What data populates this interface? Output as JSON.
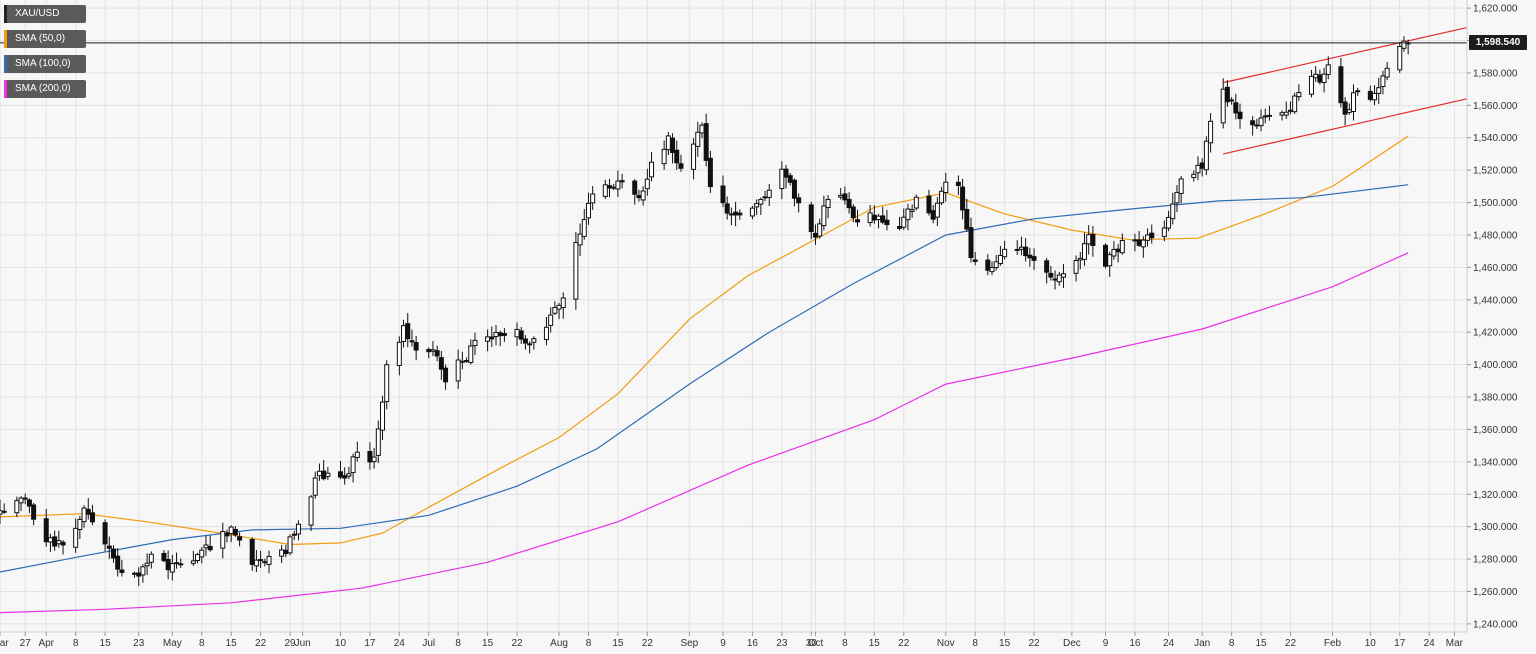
{
  "chart_data": {
    "type": "candlestick",
    "symbol": "XAU/USD",
    "last_price": "1,598.540",
    "y_axis": {
      "ylim": [
        1235,
        1625
      ],
      "ticks": [
        "1,240.000",
        "1,260.000",
        "1,280.000",
        "1,300.000",
        "1,320.000",
        "1,340.000",
        "1,360.000",
        "1,380.000",
        "1,400.000",
        "1,420.000",
        "1,440.000",
        "1,460.000",
        "1,480.000",
        "1,500.000",
        "1,520.000",
        "1,540.000",
        "1,560.000",
        "1,580.000",
        "1,600.000",
        "1,620.000"
      ]
    },
    "x_axis": {
      "start_date": "2019-03-21",
      "end_date": "2020-03-04",
      "ticks": [
        {
          "date": "2019-03-21",
          "label": "Mar"
        },
        {
          "date": "2019-03-27",
          "label": "27"
        },
        {
          "date": "2019-04-01",
          "label": "Apr"
        },
        {
          "date": "2019-04-08",
          "label": "8"
        },
        {
          "date": "2019-04-15",
          "label": "15"
        },
        {
          "date": "2019-04-23",
          "label": "23"
        },
        {
          "date": "2019-05-01",
          "label": "May"
        },
        {
          "date": "2019-05-08",
          "label": "8"
        },
        {
          "date": "2019-05-15",
          "label": "15"
        },
        {
          "date": "2019-05-22",
          "label": "22"
        },
        {
          "date": "2019-05-29",
          "label": "29"
        },
        {
          "date": "2019-06-01",
          "label": "Jun"
        },
        {
          "date": "2019-06-10",
          "label": "10"
        },
        {
          "date": "2019-06-17",
          "label": "17"
        },
        {
          "date": "2019-06-24",
          "label": "24"
        },
        {
          "date": "2019-07-01",
          "label": "Jul"
        },
        {
          "date": "2019-07-08",
          "label": "8"
        },
        {
          "date": "2019-07-15",
          "label": "15"
        },
        {
          "date": "2019-07-22",
          "label": "22"
        },
        {
          "date": "2019-08-01",
          "label": "Aug"
        },
        {
          "date": "2019-08-08",
          "label": "8"
        },
        {
          "date": "2019-08-15",
          "label": "15"
        },
        {
          "date": "2019-08-22",
          "label": "22"
        },
        {
          "date": "2019-09-01",
          "label": "Sep"
        },
        {
          "date": "2019-09-09",
          "label": "9"
        },
        {
          "date": "2019-09-16",
          "label": "16"
        },
        {
          "date": "2019-09-23",
          "label": "23"
        },
        {
          "date": "2019-09-30",
          "label": "30"
        },
        {
          "date": "2019-10-01",
          "label": "Oct"
        },
        {
          "date": "2019-10-08",
          "label": "8"
        },
        {
          "date": "2019-10-15",
          "label": "15"
        },
        {
          "date": "2019-10-22",
          "label": "22"
        },
        {
          "date": "2019-11-01",
          "label": "Nov"
        },
        {
          "date": "2019-11-08",
          "label": "8"
        },
        {
          "date": "2019-11-15",
          "label": "15"
        },
        {
          "date": "2019-11-22",
          "label": "22"
        },
        {
          "date": "2019-12-01",
          "label": "Dec"
        },
        {
          "date": "2019-12-09",
          "label": "9"
        },
        {
          "date": "2019-12-16",
          "label": "16"
        },
        {
          "date": "2019-12-24",
          "label": "24"
        },
        {
          "date": "2020-01-01",
          "label": "Jan"
        },
        {
          "date": "2020-01-08",
          "label": "8"
        },
        {
          "date": "2020-01-15",
          "label": "15"
        },
        {
          "date": "2020-01-22",
          "label": "22"
        },
        {
          "date": "2020-02-01",
          "label": "Feb"
        },
        {
          "date": "2020-02-10",
          "label": "10"
        },
        {
          "date": "2020-02-17",
          "label": "17"
        },
        {
          "date": "2020-02-24",
          "label": "24"
        },
        {
          "date": "2020-03-01",
          "label": "Mar"
        }
      ]
    },
    "price_path": [
      [
        "2019-03-21",
        1308
      ],
      [
        "2019-03-27",
        1318
      ],
      [
        "2019-04-01",
        1292
      ],
      [
        "2019-04-05",
        1290
      ],
      [
        "2019-04-10",
        1308
      ],
      [
        "2019-04-15",
        1290
      ],
      [
        "2019-04-18",
        1275
      ],
      [
        "2019-04-23",
        1272
      ],
      [
        "2019-04-26",
        1284
      ],
      [
        "2019-05-01",
        1275
      ],
      [
        "2019-05-06",
        1280
      ],
      [
        "2019-05-13",
        1295
      ],
      [
        "2019-05-15",
        1300
      ],
      [
        "2019-05-20",
        1276
      ],
      [
        "2019-05-24",
        1282
      ],
      [
        "2019-05-28",
        1283
      ],
      [
        "2019-05-31",
        1305
      ],
      [
        "2019-06-05",
        1332
      ],
      [
        "2019-06-10",
        1328
      ],
      [
        "2019-06-14",
        1344
      ],
      [
        "2019-06-18",
        1342
      ],
      [
        "2019-06-21",
        1398
      ],
      [
        "2019-06-25",
        1422
      ],
      [
        "2019-06-28",
        1410
      ],
      [
        "2019-07-02",
        1410
      ],
      [
        "2019-07-05",
        1392
      ],
      [
        "2019-07-09",
        1402
      ],
      [
        "2019-07-12",
        1412
      ],
      [
        "2019-07-17",
        1418
      ],
      [
        "2019-07-22",
        1420
      ],
      [
        "2019-07-25",
        1412
      ],
      [
        "2019-07-30",
        1428
      ],
      [
        "2019-08-02",
        1442
      ],
      [
        "2019-08-05",
        1475
      ],
      [
        "2019-08-08",
        1500
      ],
      [
        "2019-08-12",
        1512
      ],
      [
        "2019-08-16",
        1512
      ],
      [
        "2019-08-20",
        1502
      ],
      [
        "2019-08-23",
        1525
      ],
      [
        "2019-08-27",
        1540
      ],
      [
        "2019-08-30",
        1522
      ],
      [
        "2019-09-04",
        1548
      ],
      [
        "2019-09-06",
        1508
      ],
      [
        "2019-09-10",
        1495
      ],
      [
        "2019-09-13",
        1490
      ],
      [
        "2019-09-18",
        1500
      ],
      [
        "2019-09-23",
        1522
      ],
      [
        "2019-09-26",
        1504
      ],
      [
        "2019-10-01",
        1478
      ],
      [
        "2019-10-04",
        1504
      ],
      [
        "2019-10-08",
        1505
      ],
      [
        "2019-10-11",
        1488
      ],
      [
        "2019-10-16",
        1492
      ],
      [
        "2019-10-21",
        1485
      ],
      [
        "2019-10-25",
        1502
      ],
      [
        "2019-10-29",
        1492
      ],
      [
        "2019-11-01",
        1512
      ],
      [
        "2019-11-04",
        1508
      ],
      [
        "2019-11-07",
        1468
      ],
      [
        "2019-11-11",
        1456
      ],
      [
        "2019-11-15",
        1468
      ],
      [
        "2019-11-19",
        1472
      ],
      [
        "2019-11-22",
        1462
      ],
      [
        "2019-11-27",
        1455
      ],
      [
        "2019-12-02",
        1463
      ],
      [
        "2019-12-05",
        1478
      ],
      [
        "2019-12-09",
        1462
      ],
      [
        "2019-12-13",
        1475
      ],
      [
        "2019-12-18",
        1477
      ],
      [
        "2019-12-23",
        1484
      ],
      [
        "2019-12-27",
        1512
      ],
      [
        "2020-01-01",
        1522
      ],
      [
        "2020-01-03",
        1552
      ],
      [
        "2020-01-06",
        1568
      ],
      [
        "2020-01-08",
        1560
      ],
      [
        "2020-01-10",
        1552
      ],
      [
        "2020-01-14",
        1545
      ],
      [
        "2020-01-17",
        1557
      ],
      [
        "2020-01-22",
        1558
      ],
      [
        "2020-01-27",
        1580
      ],
      [
        "2020-01-29",
        1575
      ],
      [
        "2020-01-31",
        1586
      ],
      [
        "2020-02-04",
        1553
      ],
      [
        "2020-02-07",
        1570
      ],
      [
        "2020-02-11",
        1565
      ],
      [
        "2020-02-14",
        1583
      ],
      [
        "2020-02-18",
        1600
      ],
      [
        "2020-02-19",
        1600
      ]
    ],
    "sma": [
      {
        "name": "SMA (50,0)",
        "color": "#f39c12",
        "points": [
          [
            "2019-03-21",
            1306
          ],
          [
            "2019-04-10",
            1308
          ],
          [
            "2019-04-25",
            1303
          ],
          [
            "2019-05-10",
            1297
          ],
          [
            "2019-05-29",
            1289
          ],
          [
            "2019-06-10",
            1290
          ],
          [
            "2019-06-20",
            1296
          ],
          [
            "2019-07-01",
            1312
          ],
          [
            "2019-07-18",
            1336
          ],
          [
            "2019-08-01",
            1355
          ],
          [
            "2019-08-15",
            1382
          ],
          [
            "2019-09-01",
            1428
          ],
          [
            "2019-09-15",
            1455
          ],
          [
            "2019-09-30",
            1476
          ],
          [
            "2019-10-15",
            1497
          ],
          [
            "2019-11-01",
            1506
          ],
          [
            "2019-11-15",
            1493
          ],
          [
            "2019-12-01",
            1483
          ],
          [
            "2019-12-15",
            1477
          ],
          [
            "2019-12-31",
            1478
          ],
          [
            "2020-01-15",
            1492
          ],
          [
            "2020-02-01",
            1510
          ],
          [
            "2020-02-19",
            1541
          ]
        ]
      },
      {
        "name": "SMA (100,0)",
        "color": "#2f6cb6",
        "points": [
          [
            "2019-03-21",
            1272
          ],
          [
            "2019-04-10",
            1282
          ],
          [
            "2019-05-01",
            1292
          ],
          [
            "2019-05-20",
            1298
          ],
          [
            "2019-06-10",
            1299
          ],
          [
            "2019-07-01",
            1307
          ],
          [
            "2019-07-22",
            1325
          ],
          [
            "2019-08-10",
            1348
          ],
          [
            "2019-09-01",
            1388
          ],
          [
            "2019-09-20",
            1420
          ],
          [
            "2019-10-10",
            1450
          ],
          [
            "2019-11-01",
            1480
          ],
          [
            "2019-11-22",
            1490
          ],
          [
            "2019-12-15",
            1496
          ],
          [
            "2020-01-05",
            1501
          ],
          [
            "2020-01-25",
            1503
          ],
          [
            "2020-02-19",
            1511
          ]
        ]
      },
      {
        "name": "SMA (200,0)",
        "color": "#e830e8",
        "points": [
          [
            "2019-03-21",
            1247
          ],
          [
            "2019-04-15",
            1249
          ],
          [
            "2019-05-15",
            1253
          ],
          [
            "2019-06-15",
            1262
          ],
          [
            "2019-07-15",
            1278
          ],
          [
            "2019-08-15",
            1303
          ],
          [
            "2019-09-15",
            1338
          ],
          [
            "2019-10-15",
            1366
          ],
          [
            "2019-11-01",
            1388
          ],
          [
            "2019-12-01",
            1404
          ],
          [
            "2020-01-01",
            1422
          ],
          [
            "2020-02-01",
            1448
          ],
          [
            "2020-02-19",
            1469
          ]
        ]
      }
    ],
    "channel": {
      "color": "#e52b2b",
      "upper": [
        [
          "2020-01-06",
          1574
        ],
        [
          "2020-03-04",
          1608
        ]
      ],
      "lower": [
        [
          "2020-01-06",
          1530
        ],
        [
          "2020-03-04",
          1564
        ]
      ]
    }
  },
  "legend": [
    {
      "label": "XAU/USD",
      "color": "#222222"
    },
    {
      "label": "SMA (50,0)",
      "color": "#f39c12"
    },
    {
      "label": "SMA (100,0)",
      "color": "#2f6cb6"
    },
    {
      "label": "SMA (200,0)",
      "color": "#e830e8"
    }
  ],
  "colors": {
    "up_body": "#ffffff",
    "down_body": "#111111",
    "wick": "#111111",
    "grid": "#e2e2e2",
    "price_line": "#1c1c1c"
  }
}
